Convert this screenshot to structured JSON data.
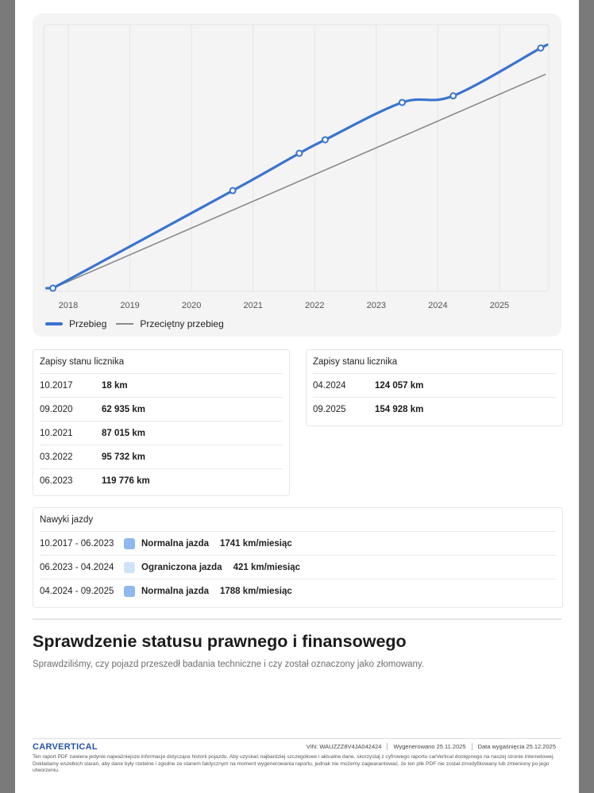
{
  "chart_data": {
    "type": "line",
    "x_ticks": [
      "2018",
      "2019",
      "2020",
      "2021",
      "2022",
      "2023",
      "2024",
      "2025"
    ],
    "series": [
      {
        "name": "Przebieg",
        "color": "#3a73d0",
        "points": [
          {
            "x": 2017.75,
            "y": 18
          },
          {
            "x": 2020.67,
            "y": 62935
          },
          {
            "x": 2021.75,
            "y": 87015
          },
          {
            "x": 2022.17,
            "y": 95732
          },
          {
            "x": 2023.42,
            "y": 119776
          },
          {
            "x": 2024.25,
            "y": 124057
          },
          {
            "x": 2025.67,
            "y": 154928
          }
        ]
      },
      {
        "name": "Przeciętny przebieg",
        "color": "#8a8a8a",
        "points": [
          {
            "x": 2017.75,
            "y": 18
          },
          {
            "x": 2025.75,
            "y": 138000
          }
        ]
      }
    ],
    "xlim": [
      2017.6,
      2025.8
    ],
    "ylim": [
      -2000,
      170000
    ],
    "grid": "vertical"
  },
  "legend": {
    "series_1": "Przebieg",
    "series_2": "Przeciętny przebieg"
  },
  "odometer_left": {
    "title": "Zapisy stanu licznika",
    "rows": [
      {
        "date": "10.2017",
        "km": "18 km"
      },
      {
        "date": "09.2020",
        "km": "62 935 km"
      },
      {
        "date": "10.2021",
        "km": "87 015 km"
      },
      {
        "date": "03.2022",
        "km": "95 732 km"
      },
      {
        "date": "06.2023",
        "km": "119 776 km"
      }
    ]
  },
  "odometer_right": {
    "title": "Zapisy stanu licznika",
    "rows": [
      {
        "date": "04.2024",
        "km": "124 057 km"
      },
      {
        "date": "09.2025",
        "km": "154 928 km"
      }
    ]
  },
  "habits": {
    "title": "Nawyki jazdy",
    "rows": [
      {
        "range": "10.2017 - 06.2023",
        "type": "Normalna jazda",
        "rate": "1741 km/miesiąc",
        "color": "#8fb8ee"
      },
      {
        "range": "06.2023 - 04.2024",
        "type": "Ograniczona jazda",
        "rate": "421 km/miesiąc",
        "color": "#cfe3f8"
      },
      {
        "range": "04.2024 - 09.2025",
        "type": "Normalna jazda",
        "rate": "1788 km/miesiąc",
        "color": "#8fb8ee"
      }
    ]
  },
  "legal": {
    "title": "Sprawdzenie statusu prawnego i finansowego",
    "subtitle": "Sprawdziliśmy, czy pojazd przeszedł badania techniczne i czy został oznaczony jako złomowany."
  },
  "footer": {
    "logo": "CARVERTICAL",
    "vin": "VIN:  WAUZZZ8V4JA042424",
    "generated": "Wygenerowano  25.11.2025",
    "expires": "Data wygaśnięcia  25.12.2025",
    "disclaimer": "Ten raport PDF zawiera jedynie najważniejsze informacje dotyczące historii pojazdu. Aby uzyskać najbardziej szczegółowe i aktualne dane, skorzystaj z cyfrowego raportu carVertical dostępnego na naszej stronie internetowej. Dokładamy wszelkich starań, aby dane były rzetelne i zgodne ze stanem faktycznym na moment wygenerowania raportu, jednak nie możemy zagwarantować, że ten plik PDF nie został zmodyfikowany lub zmieniony po jego utworzeniu."
  }
}
